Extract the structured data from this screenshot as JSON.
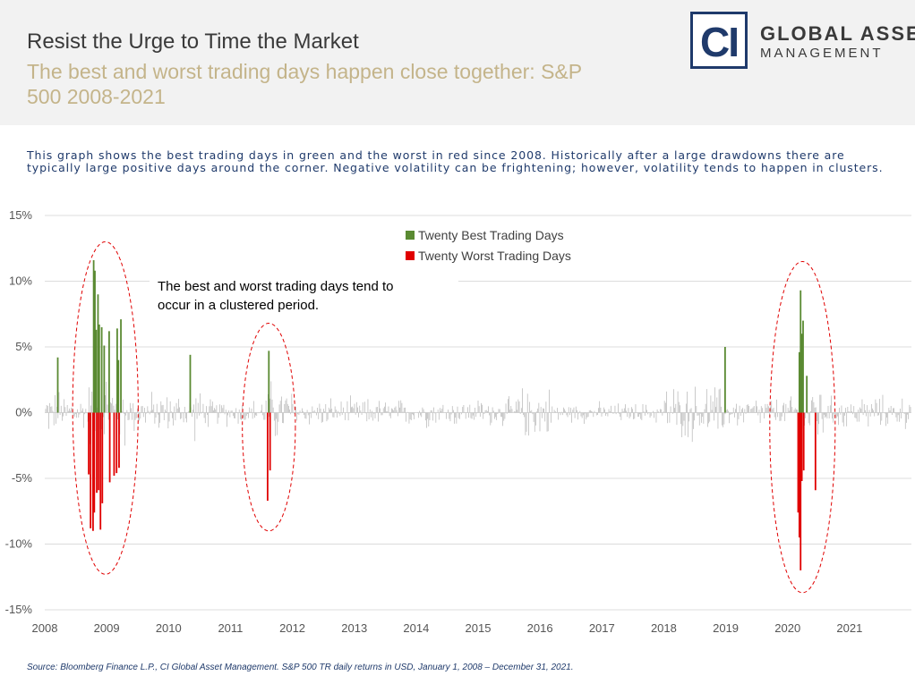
{
  "header": {
    "title": "Resist the Urge to Time the Market",
    "subtitle": "The best and worst trading days happen close together: S&P 500 2008-2021"
  },
  "logo": {
    "mark": "CI",
    "line1": "GLOBAL ASSET",
    "line2": "MANAGEMENT"
  },
  "description": "This graph shows the best trading days in green and the worst in red since 2008. Historically after a large drawdowns there are typically large positive days around the corner. Negative volatility can be frightening; however, volatility tends to happen in clusters.",
  "source": "Source: Bloomberg Finance L.P., CI Global Asset Management. S&P 500 TR daily returns in USD, January 1, 2008 – December 31, 2021.",
  "colors": {
    "best": "#5a8a32",
    "worst": "#e00000",
    "other": "#b4b4b4",
    "brand": "#1f3a6b"
  },
  "chart_data": {
    "type": "bar",
    "title": "",
    "xlabel": "",
    "ylabel": "",
    "xlim": [
      2008.0,
      2022.0
    ],
    "ylim": [
      -15,
      15
    ],
    "y_ticks": [
      {
        "value": 15,
        "label": "15%"
      },
      {
        "value": 10,
        "label": "10%"
      },
      {
        "value": 5,
        "label": "5%"
      },
      {
        "value": 0,
        "label": "0%"
      },
      {
        "value": -5,
        "label": "-5%"
      },
      {
        "value": -10,
        "label": "-10%"
      },
      {
        "value": -15,
        "label": "-15%"
      }
    ],
    "x_ticks": [
      {
        "value": 2008.0,
        "label": "2008"
      },
      {
        "value": 2009.0,
        "label": "2009"
      },
      {
        "value": 2010.0,
        "label": "2010"
      },
      {
        "value": 2011.0,
        "label": "2011"
      },
      {
        "value": 2012.0,
        "label": "2012"
      },
      {
        "value": 2013.0,
        "label": "2013"
      },
      {
        "value": 2014.0,
        "label": "2014"
      },
      {
        "value": 2015.0,
        "label": "2015"
      },
      {
        "value": 2016.0,
        "label": "2016"
      },
      {
        "value": 2017.0,
        "label": "2017"
      },
      {
        "value": 2018.0,
        "label": "2018"
      },
      {
        "value": 2019.0,
        "label": "2019"
      },
      {
        "value": 2020.0,
        "label": "2020"
      },
      {
        "value": 2021.0,
        "label": "2021"
      }
    ],
    "legend": [
      {
        "name": "Twenty Best Trading Days",
        "color": "#5a8a32"
      },
      {
        "name": "Twenty Worst Trading Days",
        "color": "#e00000"
      }
    ],
    "legend_position": "top-center",
    "series": [
      {
        "name": "Twenty Best Trading Days",
        "points": [
          {
            "t": 2008.21,
            "v": 4.2
          },
          {
            "t": 2008.79,
            "v": 11.6
          },
          {
            "t": 2008.81,
            "v": 10.8
          },
          {
            "t": 2008.83,
            "v": 6.3
          },
          {
            "t": 2008.86,
            "v": 9.0
          },
          {
            "t": 2008.88,
            "v": 6.7
          },
          {
            "t": 2008.92,
            "v": 6.5
          },
          {
            "t": 2008.96,
            "v": 5.1
          },
          {
            "t": 2009.04,
            "v": 6.2
          },
          {
            "t": 2009.17,
            "v": 6.4
          },
          {
            "t": 2009.19,
            "v": 4.0
          },
          {
            "t": 2009.23,
            "v": 7.1
          },
          {
            "t": 2010.35,
            "v": 4.4
          },
          {
            "t": 2011.62,
            "v": 4.7
          },
          {
            "t": 2018.99,
            "v": 5.0
          },
          {
            "t": 2020.19,
            "v": 4.6
          },
          {
            "t": 2020.21,
            "v": 9.3
          },
          {
            "t": 2020.23,
            "v": 6.0
          },
          {
            "t": 2020.25,
            "v": 7.0
          },
          {
            "t": 2020.31,
            "v": 2.8
          }
        ]
      },
      {
        "name": "Twenty Worst Trading Days",
        "points": [
          {
            "t": 2008.71,
            "v": -4.7
          },
          {
            "t": 2008.74,
            "v": -8.8
          },
          {
            "t": 2008.78,
            "v": -9.0
          },
          {
            "t": 2008.8,
            "v": -7.6
          },
          {
            "t": 2008.84,
            "v": -6.1
          },
          {
            "t": 2008.87,
            "v": -5.9
          },
          {
            "t": 2008.9,
            "v": -8.9
          },
          {
            "t": 2008.93,
            "v": -6.9
          },
          {
            "t": 2009.05,
            "v": -5.3
          },
          {
            "t": 2009.12,
            "v": -4.8
          },
          {
            "t": 2009.16,
            "v": -4.6
          },
          {
            "t": 2009.2,
            "v": -4.2
          },
          {
            "t": 2011.6,
            "v": -6.7
          },
          {
            "t": 2011.64,
            "v": -4.4
          },
          {
            "t": 2020.17,
            "v": -7.6
          },
          {
            "t": 2020.19,
            "v": -9.5
          },
          {
            "t": 2020.21,
            "v": -12.0
          },
          {
            "t": 2020.23,
            "v": -5.2
          },
          {
            "t": 2020.26,
            "v": -4.4
          },
          {
            "t": 2020.45,
            "v": -5.9
          }
        ]
      }
    ],
    "background_series": {
      "name": "Other trading days",
      "note": "approximate daily return envelope by period",
      "periods": [
        {
          "from": 2008.0,
          "to": 2008.7,
          "amp": 2.2
        },
        {
          "from": 2008.7,
          "to": 2009.3,
          "amp": 4.0
        },
        {
          "from": 2009.3,
          "to": 2010.3,
          "amp": 2.0
        },
        {
          "from": 2010.3,
          "to": 2010.6,
          "amp": 2.4
        },
        {
          "from": 2010.6,
          "to": 2011.55,
          "amp": 1.4
        },
        {
          "from": 2011.55,
          "to": 2012.0,
          "amp": 3.0
        },
        {
          "from": 2012.0,
          "to": 2015.6,
          "amp": 1.4
        },
        {
          "from": 2015.6,
          "to": 2016.2,
          "amp": 2.6
        },
        {
          "from": 2016.2,
          "to": 2018.0,
          "amp": 1.0
        },
        {
          "from": 2018.0,
          "to": 2019.0,
          "amp": 2.7
        },
        {
          "from": 2019.0,
          "to": 2020.1,
          "amp": 1.6
        },
        {
          "from": 2020.1,
          "to": 2020.6,
          "amp": 3.5
        },
        {
          "from": 2020.6,
          "to": 2022.0,
          "amp": 1.6
        }
      ]
    },
    "highlight_clusters": [
      {
        "t": 2008.98,
        "v_top": 13.0,
        "v_bottom": -12.3
      },
      {
        "t": 2011.62,
        "v_top": 6.8,
        "v_bottom": -9.0
      },
      {
        "t": 2020.24,
        "v_top": 11.5,
        "v_bottom": -13.7
      }
    ],
    "annotation": {
      "text_lines": [
        "The best and worst trading days tend to",
        "occur in a clustered period."
      ]
    }
  }
}
